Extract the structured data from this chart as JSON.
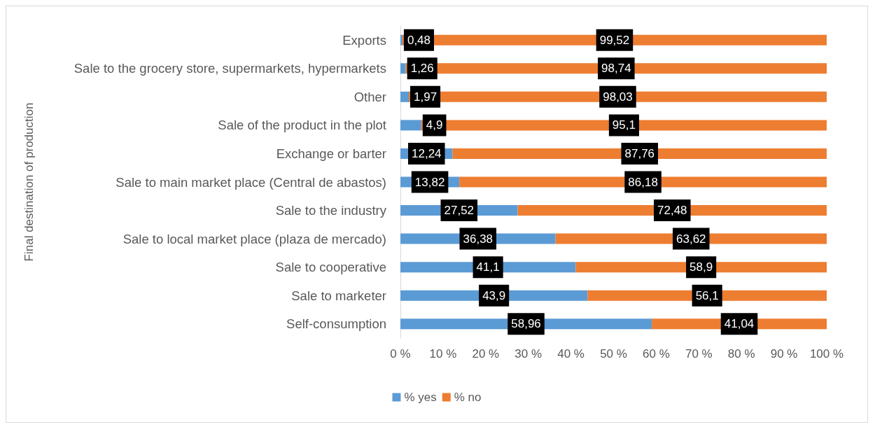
{
  "chart_data": {
    "type": "bar",
    "orientation": "horizontal",
    "stacked": true,
    "ylabel": "Final destination of production",
    "categories": [
      "Exports",
      "Sale to the grocery store, supermarkets, hypermarkets",
      "Other",
      "Sale of the product in the plot",
      "Exchange or barter",
      "Sale to main market place (Central de abastos)",
      "Sale to the industry",
      "Sale to local market place (plaza de mercado)",
      "Sale to cooperative",
      "Sale to marketer",
      "Self-consumption"
    ],
    "series": [
      {
        "name": "% yes",
        "color": "#5b9bd5",
        "values": [
          0.48,
          1.26,
          1.97,
          4.9,
          12.24,
          13.82,
          27.52,
          36.38,
          41.1,
          43.9,
          58.96
        ],
        "value_labels": [
          "0,48",
          "1,26",
          "1,97",
          "4,9",
          "12,24",
          "13,82",
          "27,52",
          "36,38",
          "41,1",
          "43,9",
          "58,96"
        ]
      },
      {
        "name": "% no",
        "color": "#ed7d31",
        "values": [
          99.52,
          98.74,
          98.03,
          95.1,
          87.76,
          86.18,
          72.48,
          63.62,
          58.9,
          56.1,
          41.04
        ],
        "value_labels": [
          "99,52",
          "98,74",
          "98,03",
          "95,1",
          "87,76",
          "86,18",
          "72,48",
          "63,62",
          "58,9",
          "56,1",
          "41,04"
        ]
      }
    ],
    "xlim": [
      0,
      100
    ],
    "xticks": [
      {
        "value": 0,
        "label": "0 %"
      },
      {
        "value": 10,
        "label": "10 %"
      },
      {
        "value": 20,
        "label": "20 %"
      },
      {
        "value": 30,
        "label": "30 %"
      },
      {
        "value": 40,
        "label": "40 %"
      },
      {
        "value": 50,
        "label": "50 %"
      },
      {
        "value": 60,
        "label": "60 %"
      },
      {
        "value": 70,
        "label": "70 %"
      },
      {
        "value": 80,
        "label": "80 %"
      },
      {
        "value": 90,
        "label": "90 %"
      },
      {
        "value": 100,
        "label": "100 %"
      }
    ],
    "grid": false,
    "legend": "bottom"
  }
}
